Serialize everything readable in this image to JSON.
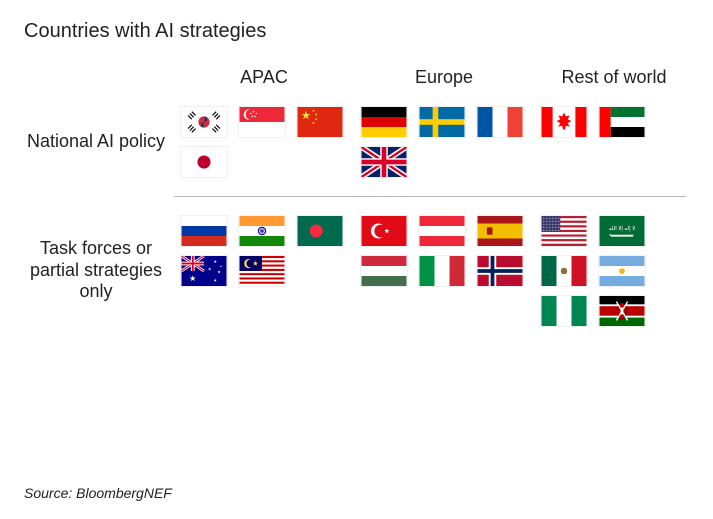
{
  "title": "Countries with AI strategies",
  "source": "Source: BloombergNEF",
  "columns": [
    "APAC",
    "Europe",
    "Rest of world"
  ],
  "rows": [
    {
      "label": "National AI policy"
    },
    {
      "label": "Task forces or partial strategies only"
    }
  ],
  "styling": {
    "background": "#ffffff",
    "title_fontsize": 20,
    "header_fontsize": 18,
    "rowlabel_fontsize": 18,
    "source_fontsize": 14,
    "flag_w": 48,
    "flag_h": 32,
    "divider_color": "#b8b8b8",
    "text_color": "#222222"
  },
  "cells": {
    "national_apac": [
      "south-korea",
      "singapore",
      "china",
      "japan"
    ],
    "national_europe": [
      "germany",
      "sweden",
      "france",
      "uk"
    ],
    "national_row": [
      "canada",
      "uae"
    ],
    "partial_apac": [
      "russia",
      "india",
      "bangladesh",
      "australia",
      "malaysia"
    ],
    "partial_europe": [
      "turkey",
      "austria",
      "spain",
      "hungary",
      "italy",
      "norway"
    ],
    "partial_row": [
      "usa",
      "saudi-arabia",
      "mexico",
      "argentina",
      "nigeria",
      "kenya"
    ]
  },
  "flag_colors": {
    "red": "#d80027",
    "blue": "#0052b4",
    "darkblue": "#003478",
    "navy": "#012169",
    "yellow": "#ffda44",
    "green": "#008751",
    "orange": "#ff9933",
    "black": "#000000",
    "white": "#ffffff",
    "skred": "#cd2e3a",
    "cnred": "#de2910",
    "sgred": "#ed2939",
    "jpred": "#bc002d",
    "fr_blue": "#0055a4",
    "fr_red": "#ef4135",
    "de_red": "#dd0000",
    "de_yel": "#ffce00",
    "se_blue": "#006aa7",
    "se_yel": "#fecc00",
    "ca_red": "#ff0000",
    "ae_green": "#00732f",
    "ae_red": "#ff0000",
    "ru_blue": "#0039a6",
    "ru_red": "#d52b1e",
    "in_orange": "#ff9933",
    "in_green": "#138808",
    "in_blue": "#000080",
    "bd_green": "#006a4e",
    "bd_red": "#f42a41",
    "au_blue": "#00008b",
    "my_red": "#cc0001",
    "my_blue": "#010066",
    "tr_red": "#e30a17",
    "at_red": "#ed2939",
    "es_red": "#aa151b",
    "es_yel": "#f1bf00",
    "hu_red": "#cd2a3e",
    "hu_green": "#436f4d",
    "it_green": "#009246",
    "it_red": "#ce2b37",
    "no_red": "#ba0c2f",
    "no_blue": "#00205b",
    "us_red": "#b22234",
    "us_blue": "#3c3b6e",
    "sa_green": "#006c35",
    "mx_green": "#006847",
    "mx_red": "#ce1126",
    "ar_blue": "#74acdf",
    "ng_green": "#008751",
    "ke_red": "#bb0000",
    "ke_green": "#006600"
  }
}
